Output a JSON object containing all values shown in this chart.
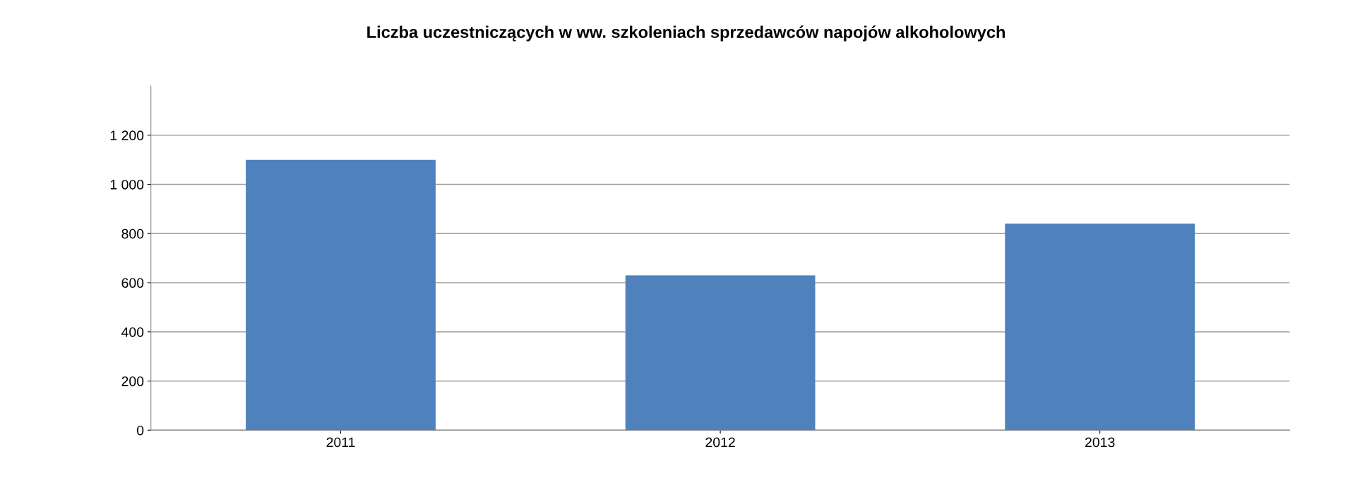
{
  "chart_data": {
    "type": "bar",
    "title": "Liczba uczestniczących w ww. szkoleniach sprzedawców napojów alkoholowych",
    "categories": [
      "2011",
      "2012",
      "2013"
    ],
    "values": [
      1100,
      630,
      840
    ],
    "color": "#4f81bd",
    "ylim": [
      0,
      1400
    ],
    "yticks": [
      0,
      200,
      400,
      600,
      800,
      {
        "value": 1000,
        "label": "1 000"
      },
      {
        "value": 1200,
        "label": "1 200"
      }
    ],
    "grid": "y",
    "legend": false
  }
}
